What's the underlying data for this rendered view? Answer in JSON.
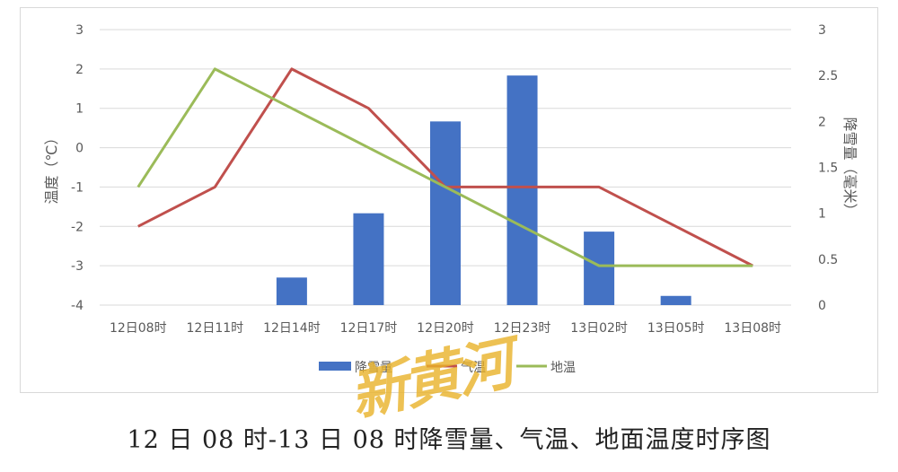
{
  "caption": "12 日 08 时-13 日 08 时降雪量、气温、地面温度时序图",
  "watermark": "新黄河",
  "chart_data": {
    "type": "bar+line",
    "categories": [
      "12日08时",
      "12日11时",
      "12日14时",
      "12日17时",
      "12日20时",
      "12日23时",
      "13日02时",
      "13日05时",
      "13日08时"
    ],
    "y_left": {
      "label": "温度（℃）",
      "range": [
        -4,
        3
      ],
      "ticks": [
        "3",
        "2",
        "1",
        "0",
        "-1",
        "-2",
        "-3",
        "-4"
      ]
    },
    "y_right": {
      "label": "降雪量（毫米）",
      "range": [
        0,
        3
      ],
      "ticks": [
        "3",
        "2.5",
        "2",
        "1.5",
        "1",
        "0.5",
        "0"
      ]
    },
    "grid": true,
    "legend_position": "bottom",
    "series": [
      {
        "name": "降雪量",
        "type": "bar",
        "axis": "right",
        "color": "#4472c4",
        "values": [
          0,
          0,
          0.3,
          1.0,
          2.0,
          2.5,
          0.8,
          0.1,
          0
        ]
      },
      {
        "name": "气温",
        "type": "line",
        "axis": "left",
        "color": "#c0504d",
        "values": [
          -2,
          -1,
          2,
          1,
          -1,
          -1,
          -1,
          -2,
          -3
        ]
      },
      {
        "name": "地温",
        "type": "line",
        "axis": "left",
        "color": "#9bbb59",
        "values": [
          -1,
          2,
          1,
          0,
          -1,
          -2,
          -3,
          -3,
          -3
        ]
      }
    ]
  }
}
